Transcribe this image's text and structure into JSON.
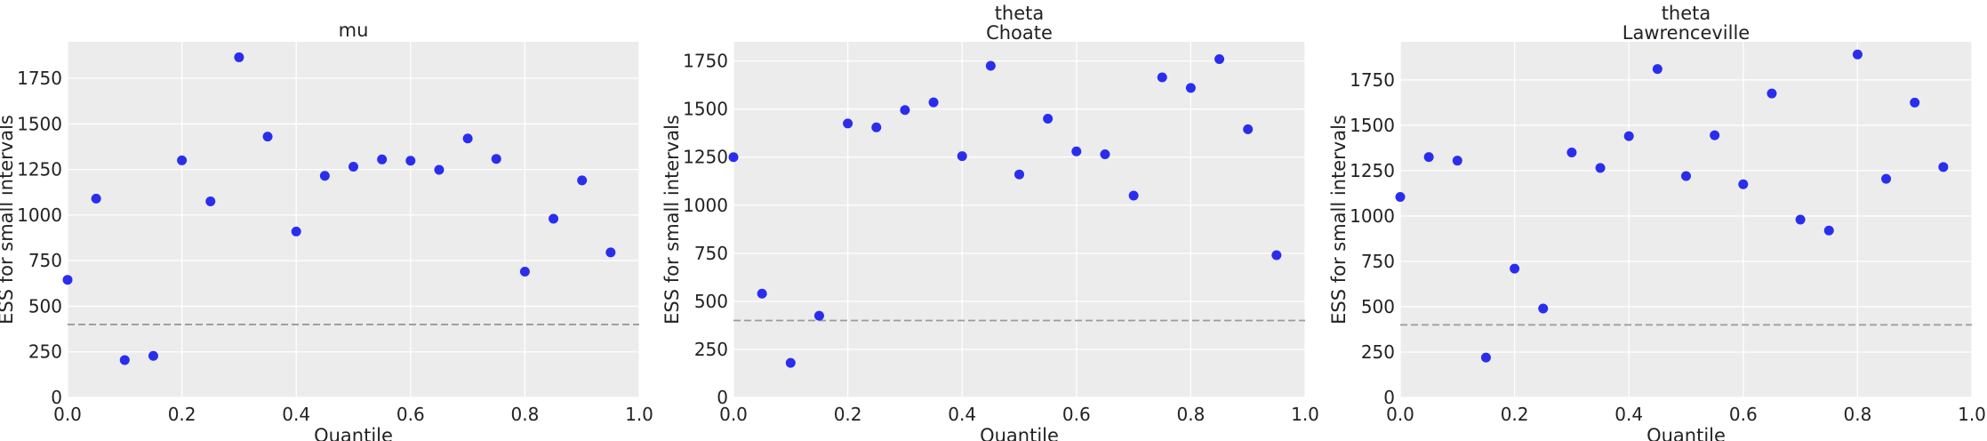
{
  "chart_data": [
    {
      "type": "scatter",
      "title": [
        "mu"
      ],
      "xlabel": "Quantile",
      "ylabel": "ESS for small intervals",
      "xlim": [
        0,
        1.0
      ],
      "ylim": [
        0,
        1950
      ],
      "xticks": [
        0,
        0.2,
        0.4,
        0.6,
        0.8,
        1.0
      ],
      "xtick_labels": [
        "0.0",
        "0.2",
        "0.4",
        "0.6",
        "0.8",
        "1.0"
      ],
      "yticks": [
        0,
        250,
        500,
        750,
        1000,
        1250,
        1500,
        1750
      ],
      "ytick_labels": [
        "0",
        "250",
        "500",
        "750",
        "1000",
        "1250",
        "1500",
        "1750"
      ],
      "reference_line": 400,
      "grid": true,
      "series": [
        {
          "color": "#2a2eec",
          "points": [
            [
              0.0,
              645
            ],
            [
              0.05,
              1090
            ],
            [
              0.1,
              205
            ],
            [
              0.15,
              228
            ],
            [
              0.2,
              1300
            ],
            [
              0.25,
              1075
            ],
            [
              0.3,
              1865
            ],
            [
              0.35,
              1430
            ],
            [
              0.4,
              910
            ],
            [
              0.45,
              1215
            ],
            [
              0.5,
              1265
            ],
            [
              0.55,
              1305
            ],
            [
              0.6,
              1298
            ],
            [
              0.65,
              1248
            ],
            [
              0.7,
              1420
            ],
            [
              0.75,
              1308
            ],
            [
              0.8,
              690
            ],
            [
              0.85,
              980
            ],
            [
              0.9,
              1190
            ],
            [
              0.95,
              795
            ]
          ]
        }
      ]
    },
    {
      "type": "scatter",
      "title": [
        "theta",
        "Choate"
      ],
      "xlabel": "Quantile",
      "ylabel": "ESS for small intervals",
      "xlim": [
        0,
        1.0
      ],
      "ylim": [
        0,
        1850
      ],
      "xticks": [
        0,
        0.2,
        0.4,
        0.6,
        0.8,
        1.0
      ],
      "xtick_labels": [
        "0.0",
        "0.2",
        "0.4",
        "0.6",
        "0.8",
        "1.0"
      ],
      "yticks": [
        0,
        250,
        500,
        750,
        1000,
        1250,
        1500,
        1750
      ],
      "ytick_labels": [
        "0",
        "250",
        "500",
        "750",
        "1000",
        "1250",
        "1500",
        "1750"
      ],
      "reference_line": 400,
      "grid": true,
      "series": [
        {
          "color": "#2a2eec",
          "points": [
            [
              0.0,
              1250
            ],
            [
              0.05,
              540
            ],
            [
              0.1,
              180
            ],
            [
              0.15,
              425
            ],
            [
              0.2,
              1425
            ],
            [
              0.25,
              1405
            ],
            [
              0.3,
              1495
            ],
            [
              0.35,
              1535
            ],
            [
              0.4,
              1255
            ],
            [
              0.45,
              1725
            ],
            [
              0.5,
              1160
            ],
            [
              0.55,
              1450
            ],
            [
              0.6,
              1280
            ],
            [
              0.65,
              1265
            ],
            [
              0.7,
              1050
            ],
            [
              0.75,
              1665
            ],
            [
              0.8,
              1610
            ],
            [
              0.85,
              1760
            ],
            [
              0.9,
              1395
            ],
            [
              0.95,
              740
            ]
          ]
        }
      ]
    },
    {
      "type": "scatter",
      "title": [
        "theta",
        "Lawrenceville"
      ],
      "xlabel": "Quantile",
      "ylabel": "ESS for small intervals",
      "xlim": [
        0,
        1.0
      ],
      "ylim": [
        0,
        1960
      ],
      "xticks": [
        0,
        0.2,
        0.4,
        0.6,
        0.8,
        1.0
      ],
      "xtick_labels": [
        "0.0",
        "0.2",
        "0.4",
        "0.6",
        "0.8",
        "1.0"
      ],
      "yticks": [
        0,
        250,
        500,
        750,
        1000,
        1250,
        1500,
        1750
      ],
      "ytick_labels": [
        "0",
        "250",
        "500",
        "750",
        "1000",
        "1250",
        "1500",
        "1750"
      ],
      "reference_line": 400,
      "grid": true,
      "series": [
        {
          "color": "#2a2eec",
          "points": [
            [
              0.0,
              1105
            ],
            [
              0.05,
              1325
            ],
            [
              0.1,
              1305
            ],
            [
              0.15,
              220
            ],
            [
              0.2,
              710
            ],
            [
              0.25,
              490
            ],
            [
              0.3,
              1350
            ],
            [
              0.35,
              1265
            ],
            [
              0.4,
              1440
            ],
            [
              0.45,
              1810
            ],
            [
              0.5,
              1220
            ],
            [
              0.55,
              1445
            ],
            [
              0.6,
              1175
            ],
            [
              0.65,
              1675
            ],
            [
              0.7,
              980
            ],
            [
              0.75,
              920
            ],
            [
              0.8,
              1890
            ],
            [
              0.85,
              1205
            ],
            [
              0.9,
              1625
            ],
            [
              0.95,
              1270
            ]
          ]
        }
      ]
    }
  ]
}
